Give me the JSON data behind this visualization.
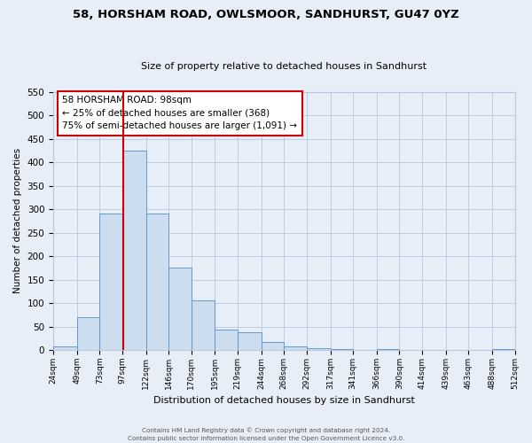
{
  "title": "58, HORSHAM ROAD, OWLSMOOR, SANDHURST, GU47 0YZ",
  "subtitle": "Size of property relative to detached houses in Sandhurst",
  "xlabel": "Distribution of detached houses by size in Sandhurst",
  "ylabel": "Number of detached properties",
  "bar_color": "#ccddf0",
  "bar_edge_color": "#6699cc",
  "background_color": "#e8eef8",
  "grid_color": "#b8c8dc",
  "bins": [
    24,
    49,
    73,
    97,
    122,
    146,
    170,
    195,
    219,
    244,
    268,
    292,
    317,
    341,
    366,
    390,
    414,
    439,
    463,
    488,
    512
  ],
  "heights": [
    8,
    70,
    290,
    425,
    290,
    175,
    105,
    43,
    38,
    18,
    8,
    5,
    2,
    0,
    2,
    0,
    0,
    0,
    0,
    2
  ],
  "tick_labels": [
    "24sqm",
    "49sqm",
    "73sqm",
    "97sqm",
    "122sqm",
    "146sqm",
    "170sqm",
    "195sqm",
    "219sqm",
    "244sqm",
    "268sqm",
    "292sqm",
    "317sqm",
    "341sqm",
    "366sqm",
    "390sqm",
    "414sqm",
    "439sqm",
    "463sqm",
    "488sqm",
    "512sqm"
  ],
  "vline_x": 98,
  "vline_color": "#cc0000",
  "ylim": [
    0,
    550
  ],
  "yticks": [
    0,
    50,
    100,
    150,
    200,
    250,
    300,
    350,
    400,
    450,
    500,
    550
  ],
  "annotation_title": "58 HORSHAM ROAD: 98sqm",
  "annotation_line1": "← 25% of detached houses are smaller (368)",
  "annotation_line2": "75% of semi-detached houses are larger (1,091) →",
  "annotation_box_color": "#ffffff",
  "annotation_box_edge": "#cc0000",
  "footer1": "Contains HM Land Registry data © Crown copyright and database right 2024.",
  "footer2": "Contains public sector information licensed under the Open Government Licence v3.0."
}
